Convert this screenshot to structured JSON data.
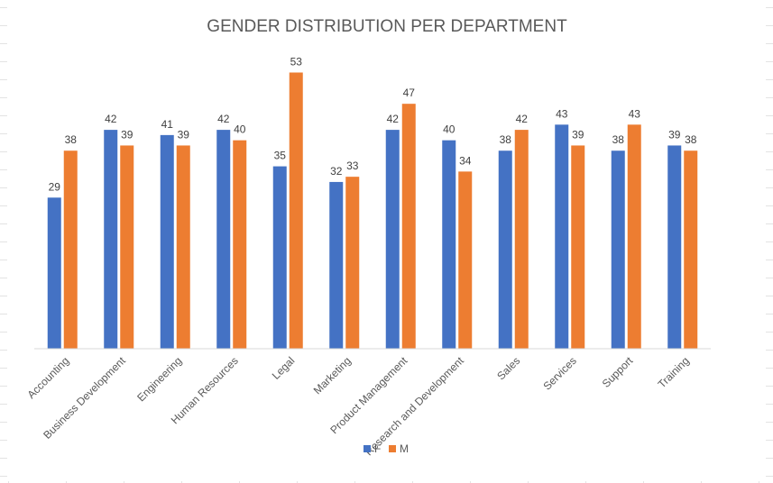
{
  "chart_data": {
    "type": "bar",
    "title": "GENDER DISTRIBUTION PER DEPARTMENT",
    "xlabel": "",
    "ylabel": "",
    "categories": [
      "Accounting",
      "Business Development",
      "Engineering",
      "Human Resources",
      "Legal",
      "Marketing",
      "Product Management",
      "Research and Development",
      "Sales",
      "Services",
      "Support",
      "Training"
    ],
    "series": [
      {
        "name": "F",
        "color": "#4472C4",
        "values": [
          29,
          42,
          41,
          42,
          35,
          32,
          42,
          40,
          38,
          43,
          38,
          39
        ]
      },
      {
        "name": "M",
        "color": "#ED7D31",
        "values": [
          38,
          39,
          39,
          40,
          53,
          33,
          47,
          34,
          42,
          39,
          43,
          38
        ]
      }
    ],
    "ylim": [
      0,
      60
    ],
    "grid": false,
    "data_labels": true,
    "legend_position": "bottom"
  }
}
